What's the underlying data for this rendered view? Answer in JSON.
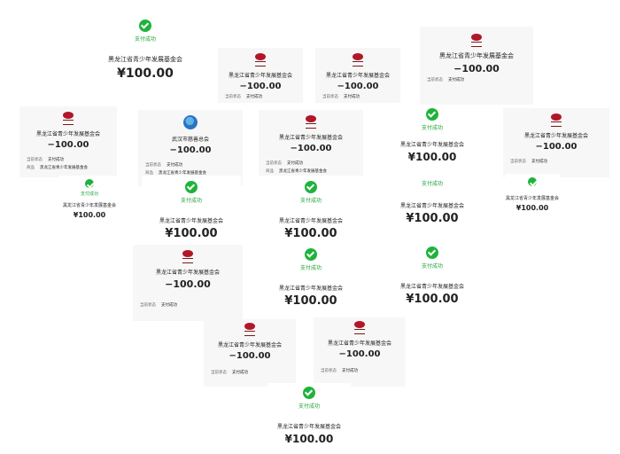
{
  "receipt": {
    "status": "支付成功",
    "org": "黑龙江省青少年发展基金会",
    "org2": "武汉市慈善总会",
    "amount_yen": "¥100.00",
    "amount_neg": "−100.00",
    "label_state": "当前状态",
    "label_item": "商品",
    "item_value": "黑龙江省青少年发展基金会"
  },
  "colors": {
    "success": "#22a33a",
    "check": "#20b33c",
    "logo": "#b0182a",
    "bg": "#f7f7f7"
  }
}
